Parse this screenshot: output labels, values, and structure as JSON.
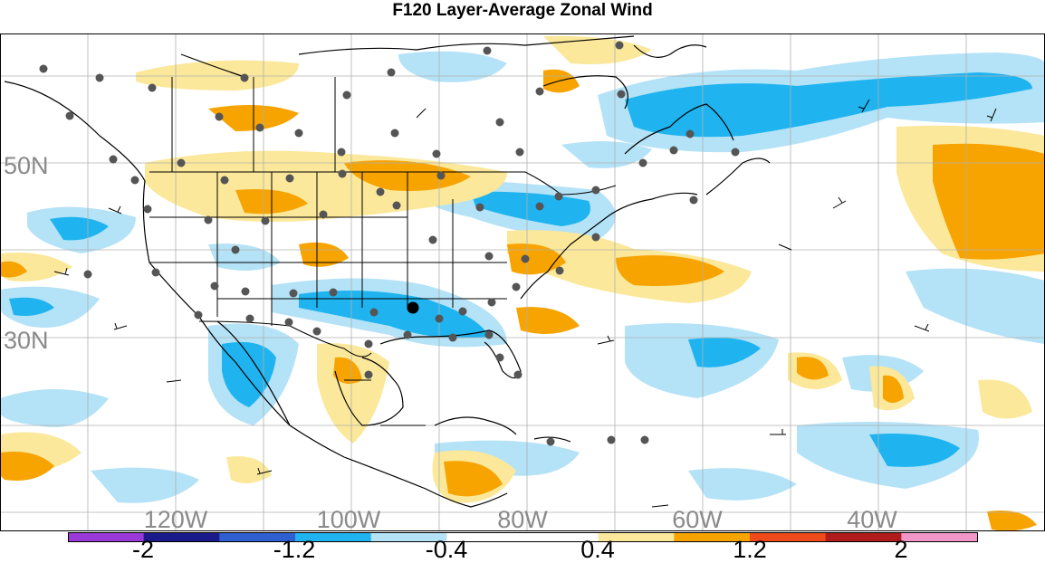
{
  "title": "F120 Layer-Average Zonal Wind",
  "map": {
    "lat_labels": [
      "50N",
      "30N"
    ],
    "lon_labels": [
      "120W",
      "100W",
      "80W",
      "60W",
      "40W"
    ],
    "label_color": "#8a8a8a",
    "grid_color": "#b0b0b0",
    "coast_color": "#000000"
  },
  "colorbar": {
    "colors": [
      "#9b38d8",
      "#1a1a8a",
      "#2f5fd1",
      "#1fb4ef",
      "#b4e2f7",
      "#ffffff",
      "#ffffff",
      "#fbe89a",
      "#f7a300",
      "#ef4a1a",
      "#b01c1c",
      "#f296c8"
    ],
    "tick_labels": [
      "-2",
      "-1.2",
      "-0.4",
      "0.4",
      "1.2",
      "2"
    ]
  }
}
